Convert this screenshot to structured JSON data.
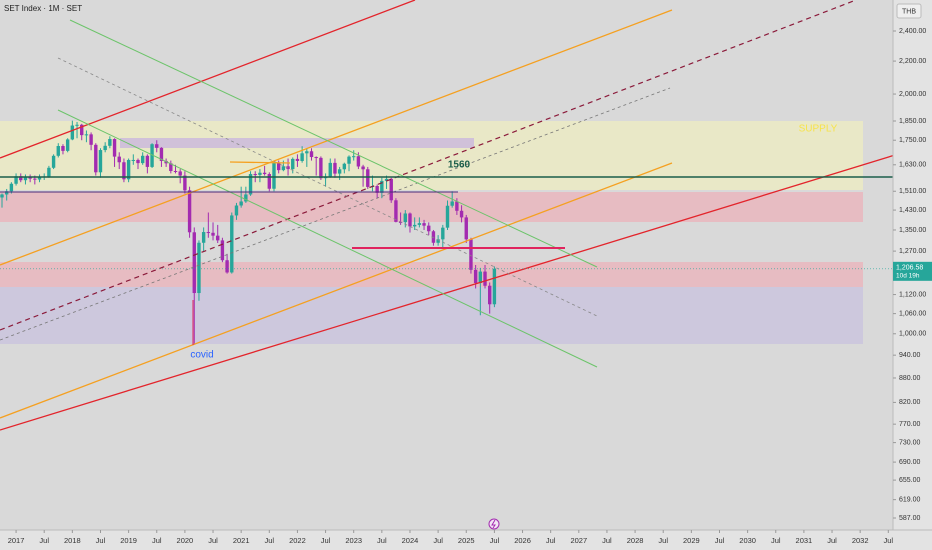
{
  "chart_data": {
    "type": "candlestick",
    "title": "SET Index · 1M · SET",
    "currency": "THB",
    "log_scale": true,
    "grid": false,
    "up_color": "#26a69a",
    "down_color": "#a32bb0",
    "annotations": [
      "1560",
      "covid",
      "SUPPLY"
    ],
    "last_price_label": "1,206.58",
    "countdown": "10d 19h",
    "x": [
      "2016-10",
      "2016-11",
      "2016-12",
      "2017-01",
      "2017-02",
      "2017-03",
      "2017-04",
      "2017-05",
      "2017-06",
      "2017-07",
      "2017-08",
      "2017-09",
      "2017-10",
      "2017-11",
      "2017-12",
      "2018-01",
      "2018-02",
      "2018-03",
      "2018-04",
      "2018-05",
      "2018-06",
      "2018-07",
      "2018-08",
      "2018-09",
      "2018-10",
      "2018-11",
      "2018-12",
      "2019-01",
      "2019-02",
      "2019-03",
      "2019-04",
      "2019-05",
      "2019-06",
      "2019-07",
      "2019-08",
      "2019-09",
      "2019-10",
      "2019-11",
      "2019-12",
      "2020-01",
      "2020-02",
      "2020-03",
      "2020-04",
      "2020-05",
      "2020-06",
      "2020-07",
      "2020-08",
      "2020-09",
      "2020-10",
      "2020-11",
      "2020-12",
      "2021-01",
      "2021-02",
      "2021-03",
      "2021-04",
      "2021-05",
      "2021-06",
      "2021-07",
      "2021-08",
      "2021-09",
      "2021-10",
      "2021-11",
      "2021-12",
      "2022-01",
      "2022-02",
      "2022-03",
      "2022-04",
      "2022-05",
      "2022-06",
      "2022-07",
      "2022-08",
      "2022-09",
      "2022-10",
      "2022-11",
      "2022-12",
      "2023-01",
      "2023-02",
      "2023-03",
      "2023-04",
      "2023-05",
      "2023-06",
      "2023-07",
      "2023-08",
      "2023-09",
      "2023-10",
      "2023-11",
      "2023-12",
      "2024-01",
      "2024-02",
      "2024-03",
      "2024-04",
      "2024-05",
      "2024-06",
      "2024-07",
      "2024-08",
      "2024-09",
      "2024-10",
      "2024-11",
      "2024-12",
      "2025-01",
      "2025-02",
      "2025-03",
      "2025-04",
      "2025-05",
      "2025-06",
      "2025-07"
    ],
    "open": [
      1483,
      1496,
      1510,
      1543,
      1577,
      1559,
      1575,
      1566,
      1562,
      1575,
      1576,
      1616,
      1673,
      1721,
      1697,
      1754,
      1826,
      1830,
      1776,
      1780,
      1727,
      1595,
      1701,
      1722,
      1756,
      1669,
      1642,
      1563,
      1653,
      1653,
      1638,
      1673,
      1620,
      1730,
      1712,
      1648,
      1637,
      1601,
      1599,
      1580,
      1514,
      1341,
      1125,
      1301,
      1342,
      1339,
      1328,
      1310,
      1237,
      1194,
      1408,
      1449,
      1466,
      1496,
      1587,
      1583,
      1593,
      1587,
      1521,
      1638,
      1605,
      1623,
      1610,
      1658,
      1648,
      1685,
      1695,
      1667,
      1663,
      1568,
      1576,
      1639,
      1589,
      1609,
      1635,
      1669,
      1671,
      1622,
      1609,
      1529,
      1533,
      1503,
      1556,
      1565,
      1471,
      1382,
      1381,
      1416,
      1364,
      1370,
      1377,
      1367,
      1345,
      1301,
      1314,
      1359,
      1448,
      1466,
      1427,
      1400,
      1314,
      1203,
      1158,
      1197,
      1149,
      1089
    ],
    "high": [
      1500,
      1520,
      1550,
      1590,
      1590,
      1585,
      1585,
      1580,
      1585,
      1590,
      1625,
      1680,
      1735,
      1730,
      1760,
      1852,
      1845,
      1835,
      1800,
      1790,
      1735,
      1710,
      1740,
      1770,
      1760,
      1690,
      1660,
      1660,
      1680,
      1660,
      1690,
      1680,
      1735,
      1750,
      1715,
      1660,
      1650,
      1630,
      1610,
      1600,
      1530,
      1360,
      1310,
      1360,
      1420,
      1380,
      1370,
      1320,
      1260,
      1420,
      1460,
      1530,
      1530,
      1600,
      1600,
      1610,
      1625,
      1595,
      1645,
      1650,
      1650,
      1660,
      1665,
      1680,
      1720,
      1710,
      1710,
      1670,
      1670,
      1590,
      1660,
      1660,
      1620,
      1640,
      1675,
      1700,
      1690,
      1630,
      1620,
      1580,
      1540,
      1570,
      1580,
      1570,
      1480,
      1420,
      1430,
      1420,
      1400,
      1400,
      1390,
      1380,
      1350,
      1330,
      1370,
      1470,
      1510,
      1480,
      1450,
      1410,
      1320,
      1220,
      1210,
      1220,
      1160,
      1215
    ],
    "low": [
      1440,
      1470,
      1500,
      1535,
      1550,
      1540,
      1550,
      1540,
      1550,
      1560,
      1570,
      1610,
      1665,
      1680,
      1690,
      1750,
      1760,
      1750,
      1740,
      1700,
      1580,
      1570,
      1690,
      1710,
      1620,
      1610,
      1550,
      1550,
      1630,
      1610,
      1630,
      1590,
      1615,
      1690,
      1620,
      1620,
      1590,
      1590,
      1545,
      1500,
      1320,
      969,
      1100,
      1270,
      1320,
      1310,
      1300,
      1230,
      1190,
      1190,
      1390,
      1440,
      1460,
      1490,
      1550,
      1550,
      1580,
      1510,
      1510,
      1590,
      1600,
      1580,
      1590,
      1620,
      1640,
      1620,
      1650,
      1580,
      1560,
      1530,
      1570,
      1570,
      1560,
      1590,
      1600,
      1650,
      1610,
      1530,
      1520,
      1510,
      1480,
      1480,
      1520,
      1460,
      1380,
      1370,
      1360,
      1340,
      1350,
      1360,
      1350,
      1330,
      1290,
      1290,
      1280,
      1350,
      1440,
      1410,
      1380,
      1300,
      1190,
      1140,
      1055,
      1140,
      1060,
      1080
    ],
    "close": [
      1496,
      1510,
      1543,
      1577,
      1559,
      1575,
      1566,
      1562,
      1575,
      1576,
      1616,
      1673,
      1721,
      1697,
      1754,
      1826,
      1830,
      1776,
      1780,
      1727,
      1595,
      1701,
      1722,
      1756,
      1669,
      1642,
      1563,
      1653,
      1653,
      1638,
      1673,
      1620,
      1730,
      1712,
      1648,
      1637,
      1601,
      1599,
      1580,
      1514,
      1341,
      1125,
      1301,
      1342,
      1339,
      1328,
      1310,
      1237,
      1194,
      1408,
      1449,
      1466,
      1496,
      1587,
      1583,
      1593,
      1587,
      1521,
      1638,
      1605,
      1623,
      1610,
      1658,
      1648,
      1685,
      1695,
      1667,
      1663,
      1568,
      1576,
      1639,
      1589,
      1609,
      1635,
      1669,
      1671,
      1622,
      1609,
      1529,
      1533,
      1503,
      1556,
      1565,
      1471,
      1382,
      1381,
      1416,
      1364,
      1370,
      1377,
      1367,
      1345,
      1301,
      1314,
      1359,
      1448,
      1466,
      1427,
      1400,
      1314,
      1203,
      1158,
      1197,
      1149,
      1089,
      1206.58
    ],
    "xlim": [
      "2016-10",
      "2032-08"
    ],
    "xticks": [
      {
        "value": "2017-01",
        "label": "2017"
      },
      {
        "value": "2017-07",
        "label": "Jul"
      },
      {
        "value": "2018-01",
        "label": "2018"
      },
      {
        "value": "2018-07",
        "label": "Jul"
      },
      {
        "value": "2019-01",
        "label": "2019"
      },
      {
        "value": "2019-07",
        "label": "Jul"
      },
      {
        "value": "2020-01",
        "label": "2020"
      },
      {
        "value": "2020-07",
        "label": "Jul"
      },
      {
        "value": "2021-01",
        "label": "2021"
      },
      {
        "value": "2021-07",
        "label": "Jul"
      },
      {
        "value": "2022-01",
        "label": "2022"
      },
      {
        "value": "2022-07",
        "label": "Jul"
      },
      {
        "value": "2023-01",
        "label": "2023"
      },
      {
        "value": "2023-07",
        "label": "Jul"
      },
      {
        "value": "2024-01",
        "label": "2024"
      },
      {
        "value": "2024-07",
        "label": "Jul"
      },
      {
        "value": "2025-01",
        "label": "2025"
      },
      {
        "value": "2025-07",
        "label": "Jul"
      },
      {
        "value": "2026-01",
        "label": "2026"
      },
      {
        "value": "2026-07",
        "label": "Jul"
      },
      {
        "value": "2027-01",
        "label": "2027"
      },
      {
        "value": "2027-07",
        "label": "Jul"
      },
      {
        "value": "2028-01",
        "label": "2028"
      },
      {
        "value": "2028-07",
        "label": "Jul"
      },
      {
        "value": "2029-01",
        "label": "2029"
      },
      {
        "value": "2029-07",
        "label": "Jul"
      },
      {
        "value": "2030-01",
        "label": "2030"
      },
      {
        "value": "2030-07",
        "label": "Jul"
      },
      {
        "value": "2031-01",
        "label": "2031"
      },
      {
        "value": "2031-07",
        "label": "Jul"
      },
      {
        "value": "2032-01",
        "label": "2032"
      },
      {
        "value": "2032-07",
        "label": "Jul"
      }
    ],
    "ylim": [
      567,
      2625
    ],
    "yticks": [
      {
        "value": 2400,
        "label": "2,400.00"
      },
      {
        "value": 2200,
        "label": "2,200.00"
      },
      {
        "value": 2000,
        "label": "2,000.00"
      },
      {
        "value": 1850,
        "label": "1,850.00"
      },
      {
        "value": 1750,
        "label": "1,750.00"
      },
      {
        "value": 1630,
        "label": "1,630.00"
      },
      {
        "value": 1510,
        "label": "1,510.00"
      },
      {
        "value": 1430,
        "label": "1,430.00"
      },
      {
        "value": 1350,
        "label": "1,350.00"
      },
      {
        "value": 1270,
        "label": "1,270.00"
      },
      {
        "value": 1120,
        "label": "1,120.00"
      },
      {
        "value": 1060,
        "label": "1,060.00"
      },
      {
        "value": 1000,
        "label": "1,000.00"
      },
      {
        "value": 940,
        "label": "940.00"
      },
      {
        "value": 880,
        "label": "880.00"
      },
      {
        "value": 820,
        "label": "820.00"
      },
      {
        "value": 770,
        "label": "770.00"
      },
      {
        "value": 730,
        "label": "730.00"
      },
      {
        "value": 690,
        "label": "690.00"
      },
      {
        "value": 655,
        "label": "655.00"
      },
      {
        "value": 619,
        "label": "619.00"
      },
      {
        "value": 587,
        "label": "587.00"
      }
    ]
  }
}
